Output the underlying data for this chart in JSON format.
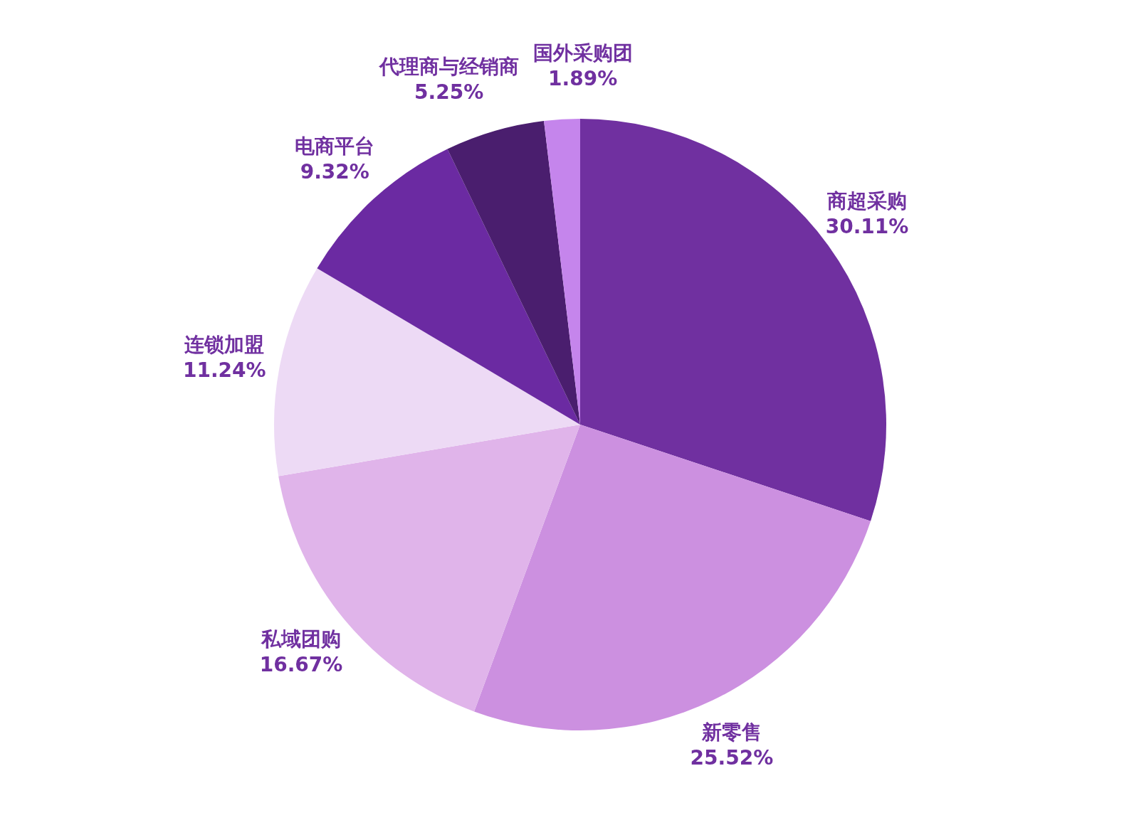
{
  "chart_data": {
    "type": "pie",
    "categories": [
      "商超采购",
      "新零售",
      "私域团购",
      "连锁加盟",
      "电商平台",
      "代理商与经销商",
      "国外采购团"
    ],
    "values": [
      30.11,
      25.52,
      16.67,
      11.24,
      9.32,
      5.25,
      1.89
    ],
    "colors": [
      "#7030a0",
      "#cc90e0",
      "#e0b4ea",
      "#eddaf5",
      "#6b2aa2",
      "#4a1e6e",
      "#c585ec"
    ],
    "data_labels": true,
    "value_labels": [
      "30.11%",
      "25.52%",
      "16.67%",
      "11.24%",
      "9.32%",
      "5.25%",
      "1.89%"
    ],
    "legend": false
  }
}
